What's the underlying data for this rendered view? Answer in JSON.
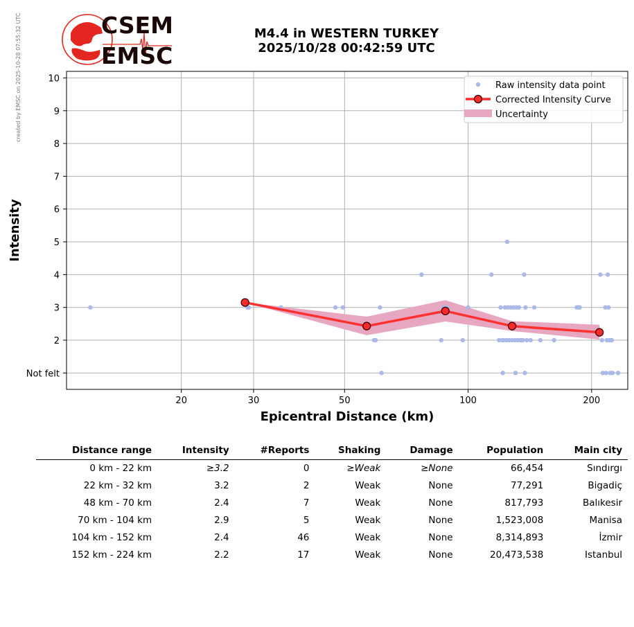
{
  "credit": "created by EMSC on 2025-10-28 07:55:32 UTC",
  "logo": {
    "line1": "CSEM",
    "line2": "EMSC",
    "accent": "#e3261f"
  },
  "title": {
    "line1": "M4.4 in WESTERN TURKEY",
    "line2": "2025/10/28 00:42:59 UTC"
  },
  "chart_data": {
    "type": "scatter",
    "xlabel": "Epicentral Distance (km)",
    "ylabel": "Intensity",
    "xscale": "log",
    "xlim": [
      10.5,
      245
    ],
    "ylim": [
      0.5,
      10.2
    ],
    "x_ticks": [
      20,
      30,
      50,
      100,
      200
    ],
    "y_ticks": [
      1,
      2,
      3,
      4,
      5,
      6,
      7,
      8,
      9,
      10
    ],
    "y_tick_labels": [
      "Not felt",
      "2",
      "3",
      "4",
      "5",
      "6",
      "7",
      "8",
      "9",
      "10"
    ],
    "grid": true,
    "legend_position": "top-right",
    "legend": [
      "Raw intensity data point",
      "Corrected Intensity Curve",
      "Uncertainty"
    ],
    "colors": {
      "raw": "#aab9e8",
      "curve": "#ff2a2a",
      "marker_edge": "#3a0000",
      "uncertainty": "#e8a7c0",
      "grid": "#b0b0b0"
    },
    "series": [
      {
        "name": "Raw intensity data point",
        "points": [
          [
            12,
            3
          ],
          [
            29,
            3
          ],
          [
            29.2,
            3
          ],
          [
            35,
            3
          ],
          [
            47.5,
            3
          ],
          [
            49.5,
            3
          ],
          [
            59,
            2
          ],
          [
            59.5,
            2
          ],
          [
            61,
            3
          ],
          [
            61.5,
            1
          ],
          [
            77,
            4
          ],
          [
            86,
            2
          ],
          [
            87,
            3
          ],
          [
            89,
            3
          ],
          [
            97,
            2
          ],
          [
            100,
            3
          ],
          [
            114,
            4
          ],
          [
            119,
            2
          ],
          [
            120,
            3
          ],
          [
            121,
            2
          ],
          [
            121.5,
            1
          ],
          [
            122,
            2
          ],
          [
            123,
            3
          ],
          [
            124,
            2
          ],
          [
            124.5,
            5
          ],
          [
            125,
            3
          ],
          [
            126,
            2
          ],
          [
            127,
            3
          ],
          [
            128,
            2
          ],
          [
            129,
            3
          ],
          [
            130,
            2
          ],
          [
            130.5,
            1
          ],
          [
            131,
            3
          ],
          [
            132,
            2
          ],
          [
            133,
            3
          ],
          [
            134,
            2
          ],
          [
            135,
            2
          ],
          [
            136,
            2
          ],
          [
            137,
            4
          ],
          [
            137.5,
            1
          ],
          [
            138,
            3
          ],
          [
            139,
            2
          ],
          [
            142,
            2
          ],
          [
            145,
            3
          ],
          [
            150,
            2
          ],
          [
            162,
            2
          ],
          [
            184,
            3
          ],
          [
            186,
            3
          ],
          [
            187,
            3
          ],
          [
            210,
            4
          ],
          [
            212,
            2
          ],
          [
            213,
            1
          ],
          [
            216,
            3
          ],
          [
            217,
            1
          ],
          [
            218,
            2
          ],
          [
            219,
            4
          ],
          [
            220,
            3
          ],
          [
            221,
            2
          ],
          [
            222,
            1
          ],
          [
            223,
            2
          ],
          [
            224,
            2
          ],
          [
            225,
            1
          ],
          [
            232,
            1
          ]
        ]
      },
      {
        "name": "Corrected Intensity Curve",
        "points": [
          [
            28.6,
            3.15
          ],
          [
            56.6,
            2.43
          ],
          [
            88,
            2.89
          ],
          [
            128,
            2.43
          ],
          [
            209,
            2.24
          ]
        ]
      },
      {
        "name": "Uncertainty",
        "upper": [
          [
            28.6,
            3.15
          ],
          [
            56.6,
            2.72
          ],
          [
            88,
            3.22
          ],
          [
            128,
            2.58
          ],
          [
            209,
            2.47
          ]
        ],
        "lower": [
          [
            28.6,
            3.15
          ],
          [
            56.6,
            2.15
          ],
          [
            88,
            2.57
          ],
          [
            128,
            2.28
          ],
          [
            209,
            2.02
          ]
        ]
      }
    ]
  },
  "table": {
    "headers": [
      "Distance range",
      "Intensity",
      "#Reports",
      "Shaking",
      "Damage",
      "Population",
      "Main city"
    ],
    "rows": [
      [
        "0 km -   22 km",
        "≥3.2",
        "0",
        "≥Weak",
        "≥None",
        "66,454",
        "Sındırgı"
      ],
      [
        "22 km -   32 km",
        "3.2",
        "2",
        "Weak",
        "None",
        "77,291",
        "Bigadiç"
      ],
      [
        "48 km -   70 km",
        "2.4",
        "7",
        "Weak",
        "None",
        "817,793",
        "Balıkesir"
      ],
      [
        "70 km -  104 km",
        "2.9",
        "5",
        "Weak",
        "None",
        "1,523,008",
        "Manisa"
      ],
      [
        "104 km -  152 km",
        "2.4",
        "46",
        "Weak",
        "None",
        "8,314,893",
        "İzmir"
      ],
      [
        "152 km -  224 km",
        "2.2",
        "17",
        "Weak",
        "None",
        "20,473,538",
        "Istanbul"
      ]
    ]
  }
}
